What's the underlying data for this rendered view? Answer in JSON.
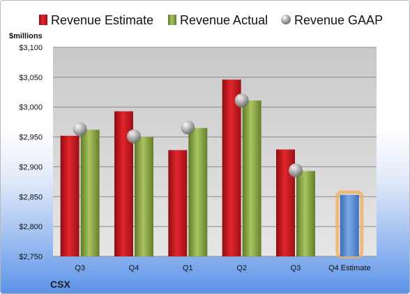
{
  "chart_data": {
    "type": "bar",
    "unit_label": "$millions",
    "company": "CSX",
    "categories": [
      "Q3",
      "Q4",
      "Q1",
      "Q2",
      "Q3",
      "Q4 Estimate"
    ],
    "series": [
      {
        "name": "Revenue Estimate",
        "color": "#c0161c",
        "values": [
          2952,
          2993,
          2928,
          3046,
          2929,
          null
        ]
      },
      {
        "name": "Revenue Actual",
        "color": "#8ea84a",
        "values": [
          2962,
          2950,
          2965,
          3011,
          2893,
          null
        ]
      },
      {
        "name": "Revenue GAAP",
        "type": "marker",
        "color": "#a8a8a8",
        "values": [
          2963,
          2951,
          2966,
          3011,
          2894,
          null
        ]
      }
    ],
    "forecast": {
      "category": "Q4 Estimate",
      "value": 2853,
      "color": "#5b8fd6",
      "highlight": "#f0b060"
    },
    "y_ticks": [
      "$3,100",
      "$3,050",
      "$3,000",
      "$2,950",
      "$2,900",
      "$2,850",
      "$2,800",
      "$2,750"
    ],
    "ylim": [
      2750,
      3100
    ],
    "grid": true,
    "legend_position": "top"
  }
}
